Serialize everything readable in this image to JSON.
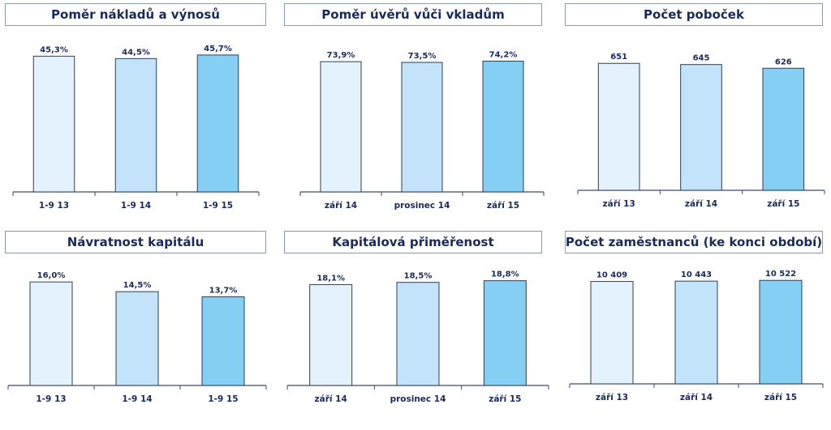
{
  "colors": {
    "title": "#1b2a57",
    "title_border": "#8a9bb0",
    "axis": "#3c4a72",
    "bar_edge": "#2f3e55",
    "bar_fills": [
      "#e4f2fd",
      "#c2e3f9",
      "#86cff4"
    ]
  },
  "chart_data": [
    {
      "type": "bar",
      "title": "Poměr nákladů a výnosů",
      "categories": [
        "1-9 13",
        "1-9 14",
        "1-9 15"
      ],
      "values": [
        45.3,
        44.5,
        45.7
      ],
      "value_labels": [
        "45,3%",
        "44,5%",
        "45,7%"
      ],
      "ylim": [
        0,
        50
      ]
    },
    {
      "type": "bar",
      "title": "Poměr úvěrů vůči vkladům",
      "categories": [
        "září 14",
        "prosinec 14",
        "září 15"
      ],
      "values": [
        73.9,
        73.5,
        74.2
      ],
      "value_labels": [
        "73,9%",
        "73,5%",
        "74,2%"
      ],
      "ylim": [
        0,
        85
      ]
    },
    {
      "type": "bar",
      "title": "Počet poboček",
      "categories": [
        "září 13",
        "září 14",
        "září 15"
      ],
      "values": [
        651,
        645,
        626
      ],
      "value_labels": [
        "651",
        "645",
        "626"
      ],
      "ylim": [
        0,
        760
      ]
    },
    {
      "type": "bar",
      "title": "Návratnost kapitálu",
      "categories": [
        "1-9 13",
        "1-9 14",
        "1-9 15"
      ],
      "values": [
        16.0,
        14.5,
        13.7
      ],
      "value_labels": [
        "16,0%",
        "14,5%",
        "13,7%"
      ],
      "ylim": [
        0,
        17.4
      ]
    },
    {
      "type": "bar",
      "title": "Kapitálová přiměřenost",
      "categories": [
        "září 14",
        "prosinec 14",
        "září 15"
      ],
      "values": [
        18.1,
        18.5,
        18.8
      ],
      "value_labels": [
        "18,1%",
        "18,5%",
        "18,8%"
      ],
      "ylim": [
        0,
        20.2
      ]
    },
    {
      "type": "bar",
      "title": "Počet zaměstnanců (ke konci období)",
      "categories": [
        "září 13",
        "září 14",
        "září 15"
      ],
      "values": [
        10409,
        10443,
        10522
      ],
      "value_labels": [
        "10 409",
        "10 443",
        "10 522"
      ],
      "ylim": [
        0,
        11280
      ]
    }
  ]
}
